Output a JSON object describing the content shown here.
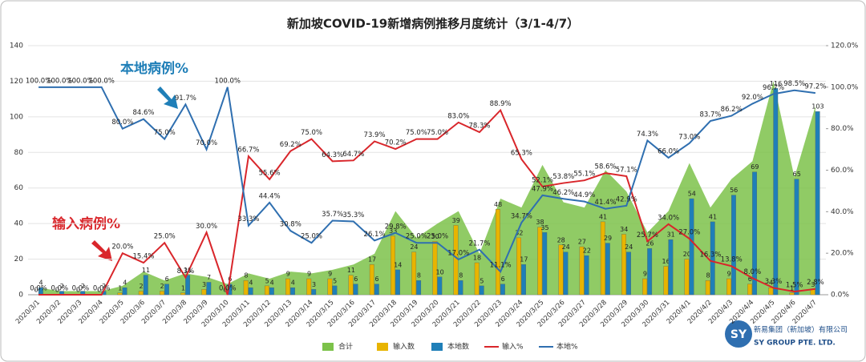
{
  "chart_data": {
    "type": "combo",
    "title": "新加坡COVID-19新增病例推移月度统计（3/1-4/7）",
    "annotations": [
      "本地病例%",
      "输入病例%"
    ],
    "logo": {
      "name": "新易集团（新加坡）有限公司",
      "name_en": "SY GROUP PTE. LTD."
    },
    "categories": [
      "2020/3/1",
      "2020/3/2",
      "2020/3/3",
      "2020/3/4",
      "2020/3/5",
      "2020/3/6",
      "2020/3/7",
      "2020/3/8",
      "2020/3/9",
      "2020/3/10",
      "2020/3/11",
      "2020/3/12",
      "2020/3/13",
      "2020/3/14",
      "2020/3/15",
      "2020/3/16",
      "2020/3/17",
      "2020/3/18",
      "2020/3/19",
      "2020/3/20",
      "2020/3/21",
      "2020/3/22",
      "2020/3/23",
      "2020/3/24",
      "2020/3/25",
      "2020/3/26",
      "2020/3/27",
      "2020/3/28",
      "2020/3/29",
      "2020/3/30",
      "2020/3/31",
      "2020/4/1",
      "2020/4/2",
      "2020/4/3",
      "2020/4/4",
      "2020/4/5",
      "2020/4/6",
      "2020/4/7"
    ],
    "series": [
      {
        "name": "合计",
        "kind": "area",
        "color": "#7cc24a",
        "values": [
          4,
          2,
          2,
          2,
          5,
          13,
          8,
          12,
          10,
          6,
          12,
          9,
          13,
          12,
          14,
          17,
          23,
          47,
          32,
          40,
          47,
          23,
          54,
          49,
          73,
          52,
          49,
          70,
          58,
          35,
          47,
          74,
          49,
          65,
          75,
          120,
          66,
          106
        ]
      },
      {
        "name": "输入数",
        "kind": "bar",
        "color": "#e8b400",
        "values": [
          0,
          0,
          0,
          0,
          1,
          2,
          2,
          1,
          3,
          0,
          8,
          5,
          9,
          9,
          9,
          11,
          17,
          33,
          24,
          30,
          39,
          18,
          48,
          32,
          38,
          28,
          27,
          41,
          34,
          9,
          16,
          20,
          8,
          9,
          6,
          4,
          1,
          3
        ]
      },
      {
        "name": "本地数",
        "kind": "bar",
        "color": "#1f7fb8",
        "values": [
          4,
          2,
          2,
          2,
          4,
          11,
          6,
          11,
          7,
          6,
          4,
          4,
          4,
          3,
          5,
          6,
          6,
          14,
          8,
          10,
          8,
          5,
          6,
          17,
          35,
          24,
          22,
          29,
          24,
          26,
          31,
          54,
          41,
          56,
          69,
          116,
          65,
          103
        ]
      },
      {
        "name": "输入%",
        "kind": "line",
        "axis": "y2",
        "color": "#d9262b",
        "values": [
          0,
          0,
          0,
          0,
          20,
          15.4,
          25,
          8.3,
          30,
          0,
          66.7,
          55.6,
          69.2,
          75,
          64.3,
          64.7,
          73.9,
          70.2,
          75,
          75,
          83,
          78.3,
          88.9,
          65.3,
          52.1,
          53.8,
          55.1,
          58.6,
          57.1,
          25.7,
          34,
          27,
          16.3,
          13.8,
          8,
          3.3,
          1.5,
          2.8
        ],
        "value_labels": [
          "0.0%",
          "0.0%",
          "0.0%",
          "0.0%",
          "20.0%",
          "15.4%",
          "25.0%",
          "8.3%",
          "30.0%",
          "0.0%",
          "66.7%",
          "55.6%",
          "69.2%",
          "75.0%",
          "64.3%",
          "64.7%",
          "73.9%",
          "70.2%",
          "75.0%",
          "75.0%",
          "83.0%",
          "78.3%",
          "88.9%",
          "65.3%",
          "52.1%",
          "53.8%",
          "55.1%",
          "58.6%",
          "57.1%",
          "25.7%",
          "34.0%",
          "27.0%",
          "16.3%",
          "13.8%",
          "8.0%",
          "3.3%",
          "1.5%",
          "2.8%"
        ]
      },
      {
        "name": "本地%",
        "kind": "line",
        "axis": "y2",
        "color": "#2f6fb0",
        "values": [
          100,
          100,
          100,
          100,
          80,
          84.6,
          75,
          91.7,
          70,
          100,
          33.3,
          44.4,
          30.8,
          25,
          35.7,
          35.3,
          26.1,
          29.8,
          25,
          25,
          17,
          21.7,
          11.1,
          34.7,
          47.9,
          46.2,
          44.9,
          41.4,
          42.9,
          74.3,
          66,
          73,
          83.7,
          86.2,
          92,
          96.7,
          98.5,
          97.2
        ],
        "value_labels": [
          "100.0%",
          "100.0%",
          "100.0%",
          "100.0%",
          "80.0%",
          "84.6%",
          "75.0%",
          "91.7%",
          "70.0%",
          "100.0%",
          "33.3%",
          "44.4%",
          "30.8%",
          "25.0%",
          "35.7%",
          "35.3%",
          "26.1%",
          "29.8%",
          "25.0%",
          "25.0%",
          "17.0%",
          "21.7%",
          "11.1%",
          "34.7%",
          "47.9%",
          "46.2%",
          "44.9%",
          "41.4%",
          "42.9%",
          "74.3%",
          "66.0%",
          "73.0%",
          "83.7%",
          "86.2%",
          "92.0%",
          "96.7%",
          "98.5%",
          "97.2%"
        ]
      }
    ],
    "ylim": [
      0,
      140
    ],
    "yticks": [
      0,
      20,
      40,
      60,
      80,
      100,
      120,
      140
    ],
    "y2lim": [
      0,
      120
    ],
    "y2ticks": [
      {
        "value": 0,
        "label": "0.0%"
      },
      {
        "value": 20,
        "label": "20.0%"
      },
      {
        "value": 40,
        "label": "40.0%"
      },
      {
        "value": 60,
        "label": "60.0%"
      },
      {
        "value": 80,
        "label": "80.0%"
      },
      {
        "value": 100,
        "label": "100.0%"
      },
      {
        "value": 120,
        "label": "120.0%"
      }
    ],
    "grid": true
  }
}
